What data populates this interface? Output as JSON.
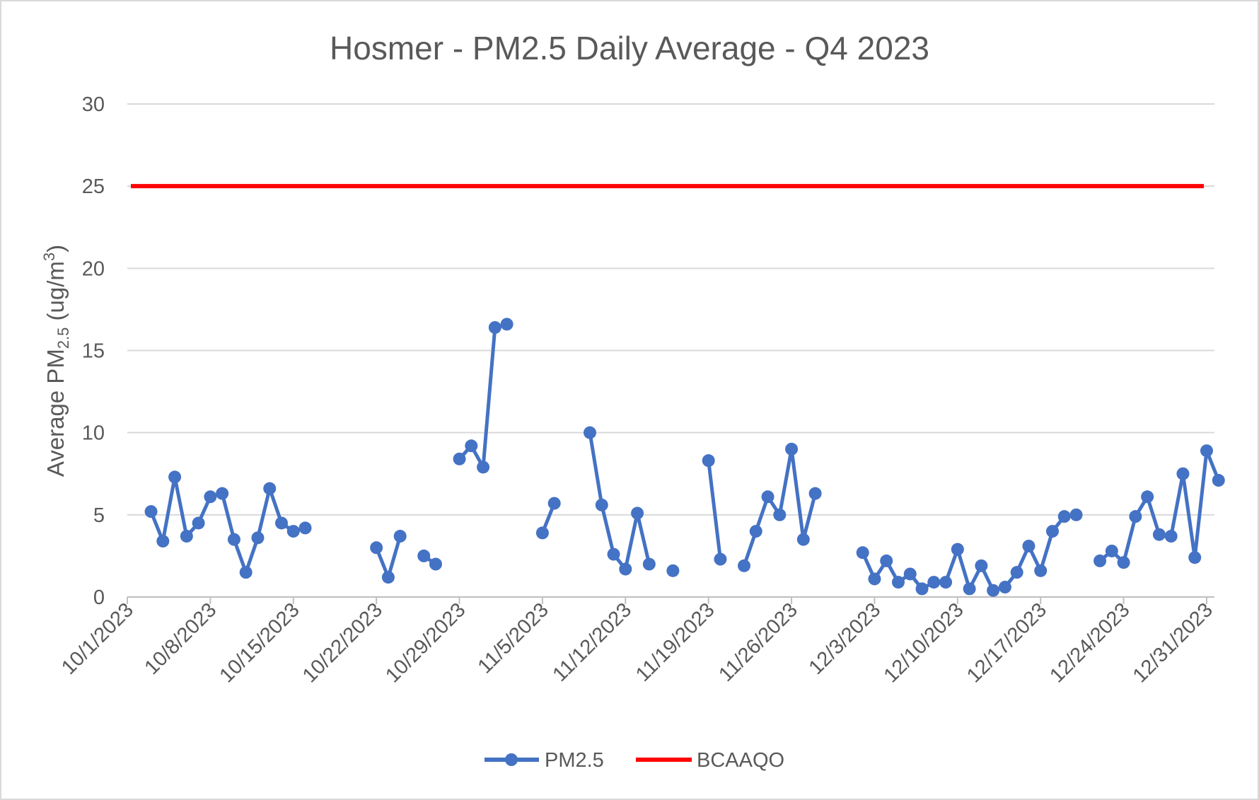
{
  "chart_data": {
    "type": "line",
    "title": "Hosmer - PM2.5 Daily Average - Q4 2023",
    "ylabel": {
      "prefix": "Average PM",
      "subscript": "2.5",
      "middle": " (ug/m",
      "superscript": "3",
      "suffix": ")"
    },
    "xlabel": "",
    "x_range": [
      "10/1/2023",
      "12/31/2023"
    ],
    "ylim": [
      0,
      30
    ],
    "y_ticks": [
      0,
      5,
      10,
      15,
      20,
      25,
      30
    ],
    "x_ticks": [
      "10/1/2023",
      "10/8/2023",
      "10/15/2023",
      "10/22/2023",
      "10/29/2023",
      "11/5/2023",
      "11/12/2023",
      "11/19/2023",
      "11/26/2023",
      "12/3/2023",
      "12/10/2023",
      "12/17/2023",
      "12/24/2023",
      "12/31/2023"
    ],
    "grid": true,
    "legend_position": "bottom",
    "series": [
      {
        "name": "PM2.5",
        "color": "#4472C4",
        "marker": "circle",
        "x": [
          "10/3/2023",
          "10/4/2023",
          "10/5/2023",
          "10/6/2023",
          "10/7/2023",
          "10/8/2023",
          "10/9/2023",
          "10/10/2023",
          "10/11/2023",
          "10/12/2023",
          "10/13/2023",
          "10/14/2023",
          "10/15/2023",
          "10/16/2023",
          "10/22/2023",
          "10/23/2023",
          "10/24/2023",
          "10/26/2023",
          "10/27/2023",
          "10/29/2023",
          "10/30/2023",
          "10/31/2023",
          "11/1/2023",
          "11/2/2023",
          "11/5/2023",
          "11/6/2023",
          "11/9/2023",
          "11/10/2023",
          "11/11/2023",
          "11/12/2023",
          "11/13/2023",
          "11/14/2023",
          "11/16/2023",
          "11/19/2023",
          "11/20/2023",
          "11/22/2023",
          "11/23/2023",
          "11/24/2023",
          "11/25/2023",
          "11/26/2023",
          "11/27/2023",
          "11/28/2023",
          "12/2/2023",
          "12/3/2023",
          "12/4/2023",
          "12/5/2023",
          "12/6/2023",
          "12/7/2023",
          "12/8/2023",
          "12/9/2023",
          "12/10/2023",
          "12/11/2023",
          "12/12/2023",
          "12/13/2023",
          "12/14/2023",
          "12/15/2023",
          "12/16/2023",
          "12/17/2023",
          "12/18/2023",
          "12/19/2023",
          "12/20/2023",
          "12/22/2023",
          "12/23/2023",
          "12/24/2023",
          "12/25/2023",
          "12/26/2023",
          "12/27/2023",
          "12/28/2023",
          "12/29/2023",
          "12/30/2023",
          "12/31/2023",
          "1/1/2024"
        ],
        "values": [
          5.2,
          3.4,
          7.3,
          3.7,
          4.5,
          6.1,
          6.3,
          3.5,
          1.5,
          3.6,
          6.6,
          4.5,
          4.0,
          4.2,
          3.0,
          1.2,
          3.7,
          2.5,
          2.0,
          8.4,
          9.2,
          7.9,
          16.4,
          16.6,
          3.9,
          5.7,
          10.0,
          5.6,
          2.6,
          1.7,
          5.1,
          2.0,
          1.6,
          8.3,
          2.3,
          1.9,
          4.0,
          6.1,
          5.0,
          9.0,
          3.5,
          6.3,
          2.7,
          1.1,
          2.2,
          0.9,
          1.4,
          0.5,
          0.9,
          0.9,
          2.9,
          0.5,
          1.9,
          0.4,
          0.6,
          1.5,
          3.1,
          1.6,
          4.0,
          4.9,
          5.0,
          2.2,
          2.8,
          2.1,
          4.9,
          6.1,
          3.8,
          3.7,
          7.5,
          2.4,
          8.9,
          7.1
        ]
      },
      {
        "name": "BCAAQO",
        "color": "#FF0000",
        "marker": "none",
        "x": [
          "10/1/2023",
          "12/31/2023"
        ],
        "values": [
          25,
          25
        ]
      }
    ]
  }
}
